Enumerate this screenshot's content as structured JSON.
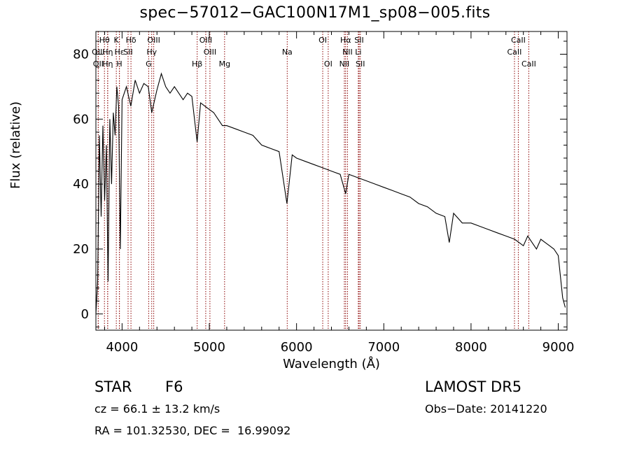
{
  "chart_data": {
    "type": "line",
    "title": "spec−57012−GAC100N17M1_sp08−005.fits",
    "xlabel": "Wavelength (Å)",
    "ylabel": "Flux (relative)",
    "xlim": [
      3700,
      9100
    ],
    "ylim": [
      -5,
      87
    ],
    "xticks": [
      4000,
      5000,
      6000,
      7000,
      8000,
      9000
    ],
    "yticks": [
      0,
      20,
      40,
      60,
      80
    ],
    "grid": false,
    "series": [
      {
        "x": [
          3700,
          3720,
          3740,
          3760,
          3780,
          3800,
          3820,
          3840,
          3860,
          3880,
          3900,
          3920,
          3940,
          3960,
          3980,
          4000,
          4050,
          4100,
          4150,
          4200,
          4250,
          4300,
          4340,
          4400,
          4450,
          4500,
          4550,
          4600,
          4650,
          4700,
          4750,
          4800,
          4860,
          4900,
          4950,
          5000,
          5050,
          5100,
          5150,
          5200,
          5300,
          5400,
          5500,
          5600,
          5700,
          5800,
          5890,
          5950,
          6000,
          6100,
          6200,
          6300,
          6400,
          6500,
          6563,
          6600,
          6700,
          6800,
          6900,
          7000,
          7100,
          7200,
          7300,
          7400,
          7500,
          7600,
          7700,
          7750,
          7800,
          7900,
          8000,
          8100,
          8200,
          8300,
          8400,
          8500,
          8550,
          8600,
          8650,
          8700,
          8750,
          8800,
          8850,
          8900,
          8950,
          9000,
          9050,
          9080
        ],
        "values": [
          0,
          10,
          55,
          30,
          58,
          35,
          52,
          10,
          60,
          40,
          62,
          55,
          70,
          64,
          20,
          66,
          70,
          64,
          72,
          68,
          71,
          70,
          62,
          69,
          74,
          70,
          68,
          70,
          68,
          66,
          68,
          67,
          53,
          65,
          64,
          63,
          62,
          60,
          58,
          58,
          57,
          56,
          55,
          52,
          51,
          50,
          34,
          49,
          48,
          47,
          46,
          45,
          44,
          43,
          37,
          43,
          42,
          41,
          40,
          39,
          38,
          37,
          36,
          34,
          33,
          31,
          30,
          22,
          31,
          28,
          28,
          27,
          26,
          25,
          24,
          23,
          22,
          21,
          24,
          22,
          20,
          23,
          22,
          21,
          20,
          18,
          5,
          2
        ]
      }
    ],
    "lines": [
      {
        "label": "Hθ",
        "x": 3798,
        "row": 1
      },
      {
        "label": "K",
        "x": 3934,
        "row": 1
      },
      {
        "label": "Hδ",
        "x": 4102,
        "row": 1
      },
      {
        "label": "OIII",
        "x": 4363,
        "row": 1
      },
      {
        "label": "OIII",
        "x": 4959,
        "row": 1
      },
      {
        "label": "OI",
        "x": 6300,
        "row": 1
      },
      {
        "label": "Hα",
        "x": 6563,
        "row": 1
      },
      {
        "label": "SII",
        "x": 6717,
        "row": 1
      },
      {
        "label": "CaII",
        "x": 8542,
        "row": 1
      },
      {
        "label": "OIII",
        "x": 3727,
        "row": 2
      },
      {
        "label": "Hη",
        "x": 3835,
        "row": 2
      },
      {
        "label": "Hε",
        "x": 3970,
        "row": 2
      },
      {
        "label": "SII",
        "x": 4069,
        "row": 2
      },
      {
        "label": "Hγ",
        "x": 4340,
        "row": 2
      },
      {
        "label": "OIII",
        "x": 5007,
        "row": 2
      },
      {
        "label": "Na",
        "x": 5893,
        "row": 2
      },
      {
        "label": "NII",
        "x": 6584,
        "row": 2
      },
      {
        "label": "Li",
        "x": 6708,
        "row": 2
      },
      {
        "label": "CaII",
        "x": 8498,
        "row": 2
      },
      {
        "label": "OII",
        "x": 3727,
        "row": 3
      },
      {
        "label": "Hη",
        "x": 3835,
        "row": 3
      },
      {
        "label": "H",
        "x": 3969,
        "row": 3
      },
      {
        "label": "G",
        "x": 4305,
        "row": 3
      },
      {
        "label": "Hβ",
        "x": 4861,
        "row": 3
      },
      {
        "label": "Mg",
        "x": 5175,
        "row": 3
      },
      {
        "label": "OI",
        "x": 6363,
        "row": 3
      },
      {
        "label": "NII",
        "x": 6548,
        "row": 3
      },
      {
        "label": "SII",
        "x": 6731,
        "row": 3
      },
      {
        "label": "CaII",
        "x": 8662,
        "row": 3
      }
    ],
    "line_color": "#8b0000"
  },
  "info": {
    "obj_class": "STAR",
    "subclass": "F6",
    "survey": "LAMOST DR5",
    "cz": "cz = 66.1 ± 13.2 km/s",
    "obs_date": "Obs−Date: 20141220",
    "coords": "RA = 101.32530, DEC =  16.99092"
  }
}
